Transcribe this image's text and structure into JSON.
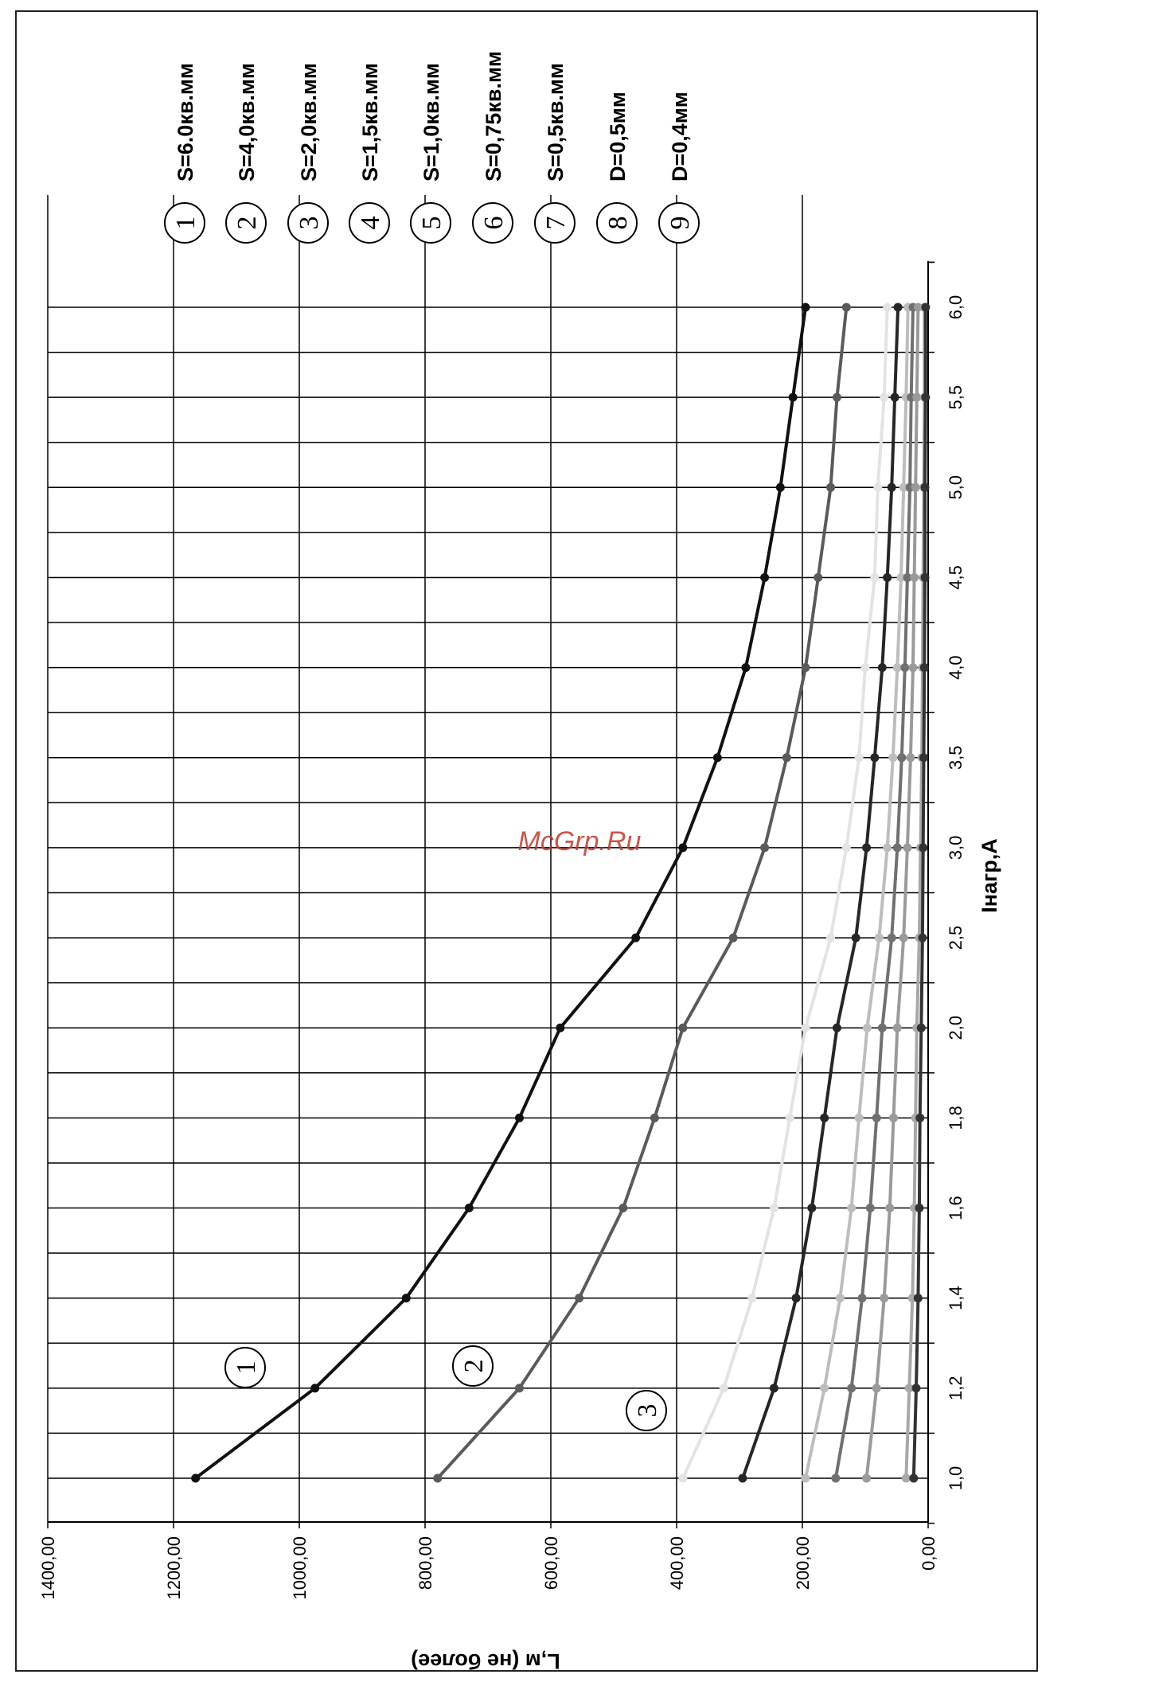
{
  "watermark": "McGrp.Ru",
  "chart_data": {
    "type": "line",
    "orientation": "rotated-90-clockwise",
    "xlabel": "Iнагр,А",
    "ylabel": "L,м (не более)",
    "ylim": [
      0,
      1400
    ],
    "y_ticks": [
      "0,00",
      "200,00",
      "400,00",
      "600,00",
      "800,00",
      "1000,00",
      "1200,00",
      "1400,00"
    ],
    "categories": [
      "1,0",
      "1,2",
      "1,4",
      "1,6",
      "1,8",
      "2,0",
      "2,5",
      "3,0",
      "3,5",
      "4,0",
      "4,5",
      "5,0",
      "5,5",
      "6,0"
    ],
    "grid": true,
    "series": [
      {
        "name": "S=6.0кв.мм",
        "number": "1",
        "color": "#111111",
        "values": [
          1165,
          975,
          830,
          730,
          650,
          585,
          465,
          390,
          335,
          290,
          260,
          235,
          215,
          195
        ]
      },
      {
        "name": "S=4,0кв.мм",
        "number": "2",
        "color": "#5a5a5a",
        "values": [
          780,
          650,
          555,
          485,
          435,
          390,
          310,
          260,
          225,
          195,
          175,
          155,
          145,
          130
        ]
      },
      {
        "name": "S=2,0кв.мм",
        "number": "3",
        "color": "#e3e3e3",
        "values": [
          390,
          325,
          280,
          245,
          220,
          195,
          155,
          130,
          110,
          100,
          85,
          80,
          70,
          65
        ]
      },
      {
        "name": "S=1,5кв.мм",
        "number": "4",
        "color": "#262626",
        "values": [
          295,
          245,
          210,
          185,
          165,
          145,
          115,
          98,
          85,
          73,
          65,
          58,
          53,
          48
        ]
      },
      {
        "name": "S=1,0кв.мм",
        "number": "5",
        "color": "#bdbdbd",
        "values": [
          195,
          165,
          140,
          122,
          110,
          97,
          78,
          65,
          56,
          49,
          43,
          39,
          35,
          32
        ]
      },
      {
        "name": "S=0,75кв.мм",
        "number": "6",
        "color": "#707070",
        "values": [
          147,
          122,
          105,
          92,
          82,
          73,
          58,
          49,
          42,
          37,
          33,
          29,
          27,
          24
        ]
      },
      {
        "name": "S=0,5кв.мм",
        "number": "7",
        "color": "#9a9a9a",
        "values": [
          98,
          82,
          70,
          61,
          55,
          49,
          39,
          33,
          28,
          24,
          22,
          20,
          18,
          16
        ]
      },
      {
        "name": "D=0,5мм",
        "number": "8",
        "color": "#a8a8a8",
        "values": [
          35,
          30,
          25,
          22,
          20,
          18,
          14,
          12,
          10,
          9,
          8,
          7,
          6,
          6
        ]
      },
      {
        "name": "D=0,4мм",
        "number": "9",
        "color": "#333333",
        "values": [
          23,
          19,
          16,
          14,
          13,
          11,
          9,
          8,
          7,
          6,
          5,
          5,
          4,
          4
        ]
      }
    ],
    "curve_labels": [
      "1",
      "2",
      "3"
    ]
  }
}
